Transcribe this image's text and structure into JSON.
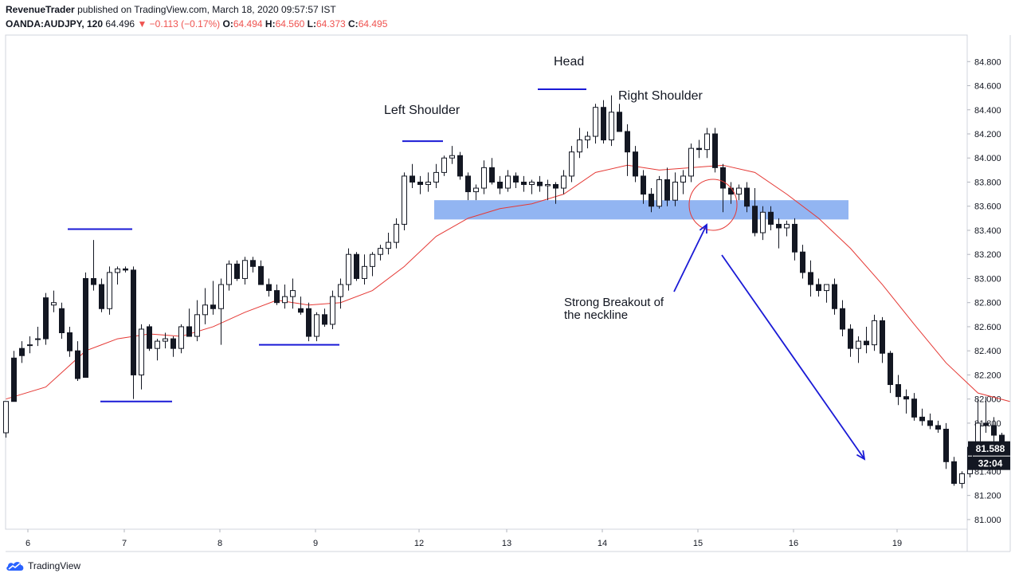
{
  "header": {
    "author": "RevenueTrader",
    "published_text": "published on TradingView.com, March 18, 2020 09:57:57 IST",
    "symbol": "OANDA:AUDJPY, 120",
    "last": "64.496",
    "change": "−0.113 (−0.17%)",
    "ohlc": [
      {
        "label": "O:",
        "value": "64.494"
      },
      {
        "label": "H:",
        "value": "64.560"
      },
      {
        "label": "L:",
        "value": "64.373"
      },
      {
        "label": "C:",
        "value": "64.495"
      }
    ]
  },
  "footer": {
    "brand": "TradingView"
  },
  "colors": {
    "ma": "#e53935",
    "zone": "#7fa8f0",
    "lines": "#1a1ad6",
    "circle": "#e53935"
  },
  "chart_data": {
    "type": "candlestick",
    "x_ticks": [
      "6",
      "7",
      "8",
      "9",
      "12",
      "13",
      "14",
      "15",
      "16",
      "19"
    ],
    "y_ticks": [
      "84.800",
      "84.600",
      "84.400",
      "84.200",
      "84.000",
      "83.800",
      "83.600",
      "83.400",
      "83.200",
      "83.000",
      "82.800",
      "82.600",
      "82.400",
      "82.200",
      "82.000",
      "81.800",
      "81.600",
      "81.400",
      "81.200",
      "81.000"
    ],
    "ylim": [
      80.92,
      85.02
    ],
    "last_price_label": "81.588",
    "countdown_label": "32:04",
    "candles": [
      [
        81.72,
        81.98,
        81.68,
        81.98
      ],
      [
        82.34,
        82.4,
        81.98,
        81.98
      ],
      [
        82.42,
        82.48,
        82.3,
        82.36
      ],
      [
        82.45,
        82.52,
        82.38,
        82.45
      ],
      [
        82.5,
        82.6,
        82.44,
        82.5
      ],
      [
        82.84,
        82.88,
        82.45,
        82.5
      ],
      [
        82.78,
        82.9,
        82.72,
        82.8
      ],
      [
        82.75,
        82.8,
        82.5,
        82.55
      ],
      [
        82.55,
        82.6,
        82.35,
        82.4
      ],
      [
        82.4,
        82.48,
        82.15,
        82.17
      ],
      [
        83.0,
        83.05,
        82.18,
        82.18
      ],
      [
        83.0,
        83.32,
        82.9,
        82.95
      ],
      [
        82.95,
        83.0,
        82.72,
        82.75
      ],
      [
        82.75,
        83.1,
        82.7,
        83.05
      ],
      [
        83.05,
        83.1,
        82.95,
        83.08
      ],
      [
        83.08,
        83.1,
        83.05,
        83.07
      ],
      [
        83.07,
        83.1,
        82.0,
        82.2
      ],
      [
        82.2,
        82.62,
        82.08,
        82.58
      ],
      [
        82.6,
        82.62,
        82.4,
        82.42
      ],
      [
        82.42,
        82.5,
        82.32,
        82.48
      ],
      [
        82.48,
        82.55,
        82.42,
        82.5
      ],
      [
        82.5,
        82.52,
        82.35,
        82.42
      ],
      [
        82.42,
        82.62,
        82.38,
        82.6
      ],
      [
        82.6,
        82.75,
        82.52,
        82.52
      ],
      [
        82.52,
        82.82,
        82.48,
        82.7
      ],
      [
        82.7,
        82.92,
        82.62,
        82.78
      ],
      [
        82.78,
        82.98,
        82.7,
        82.75
      ],
      [
        82.75,
        83.0,
        82.45,
        82.95
      ],
      [
        82.95,
        83.15,
        82.9,
        83.12
      ],
      [
        83.12,
        83.15,
        82.98,
        83.0
      ],
      [
        83.0,
        83.18,
        82.95,
        83.15
      ],
      [
        83.15,
        83.18,
        83.05,
        83.1
      ],
      [
        83.1,
        83.15,
        82.95,
        82.95
      ],
      [
        82.95,
        83.0,
        82.85,
        82.9
      ],
      [
        82.9,
        82.95,
        82.78,
        82.8
      ],
      [
        82.8,
        82.95,
        82.75,
        82.85
      ],
      [
        82.85,
        83.0,
        82.75,
        82.9
      ],
      [
        82.75,
        82.85,
        82.7,
        82.72
      ],
      [
        82.75,
        82.8,
        82.48,
        82.52
      ],
      [
        82.52,
        82.72,
        82.48,
        82.7
      ],
      [
        82.7,
        82.75,
        82.6,
        82.62
      ],
      [
        82.62,
        82.9,
        82.58,
        82.85
      ],
      [
        82.85,
        83.0,
        82.75,
        82.95
      ],
      [
        82.95,
        83.25,
        82.9,
        83.2
      ],
      [
        83.2,
        83.22,
        82.98,
        83.0
      ],
      [
        83.0,
        83.2,
        82.95,
        83.1
      ],
      [
        83.1,
        83.22,
        83.02,
        83.2
      ],
      [
        83.2,
        83.28,
        83.15,
        83.25
      ],
      [
        83.25,
        83.38,
        83.2,
        83.3
      ],
      [
        83.3,
        83.5,
        83.25,
        83.45
      ],
      [
        83.45,
        83.88,
        83.4,
        83.85
      ],
      [
        83.85,
        83.95,
        83.75,
        83.8
      ],
      [
        83.8,
        83.85,
        83.7,
        83.78
      ],
      [
        83.78,
        83.88,
        83.72,
        83.8
      ],
      [
        83.8,
        83.95,
        83.75,
        83.88
      ],
      [
        83.88,
        84.02,
        83.85,
        84.0
      ],
      [
        84.0,
        84.1,
        83.95,
        84.02
      ],
      [
        84.02,
        84.05,
        83.82,
        83.85
      ],
      [
        83.85,
        83.88,
        83.65,
        83.72
      ],
      [
        83.72,
        83.78,
        83.65,
        83.75
      ],
      [
        83.75,
        83.98,
        83.7,
        83.92
      ],
      [
        83.92,
        84.0,
        83.78,
        83.8
      ],
      [
        83.8,
        83.85,
        83.7,
        83.75
      ],
      [
        83.75,
        83.9,
        83.72,
        83.85
      ],
      [
        83.85,
        83.88,
        83.75,
        83.8
      ],
      [
        83.8,
        83.85,
        83.72,
        83.78
      ],
      [
        83.78,
        83.82,
        83.7,
        83.8
      ],
      [
        83.8,
        83.85,
        83.72,
        83.77
      ],
      [
        83.77,
        83.82,
        83.65,
        83.78
      ],
      [
        83.78,
        83.8,
        83.62,
        83.75
      ],
      [
        83.75,
        83.9,
        83.7,
        83.85
      ],
      [
        83.85,
        84.1,
        83.8,
        84.05
      ],
      [
        84.05,
        84.25,
        84.0,
        84.15
      ],
      [
        84.15,
        84.22,
        84.08,
        84.18
      ],
      [
        84.18,
        84.45,
        84.12,
        84.42
      ],
      [
        84.42,
        84.48,
        84.12,
        84.15
      ],
      [
        84.15,
        84.52,
        84.1,
        84.38
      ],
      [
        84.38,
        84.45,
        84.22,
        84.22
      ],
      [
        84.22,
        84.28,
        83.85,
        84.05
      ],
      [
        84.05,
        84.1,
        83.8,
        83.85
      ],
      [
        83.85,
        83.9,
        83.62,
        83.7
      ],
      [
        83.7,
        83.75,
        83.55,
        83.6
      ],
      [
        83.6,
        83.85,
        83.58,
        83.82
      ],
      [
        83.82,
        83.92,
        83.6,
        83.65
      ],
      [
        83.65,
        83.88,
        83.6,
        83.8
      ],
      [
        83.8,
        83.9,
        83.7,
        83.85
      ],
      [
        83.85,
        84.12,
        83.8,
        84.08
      ],
      [
        84.08,
        84.15,
        84.0,
        84.07
      ],
      [
        84.07,
        84.25,
        84.0,
        84.2
      ],
      [
        84.2,
        84.25,
        83.88,
        83.92
      ],
      [
        83.92,
        83.95,
        83.55,
        83.75
      ],
      [
        83.75,
        83.8,
        83.62,
        83.7
      ],
      [
        83.7,
        83.78,
        83.65,
        83.75
      ],
      [
        83.75,
        83.8,
        83.55,
        83.6
      ],
      [
        83.6,
        83.75,
        83.35,
        83.38
      ],
      [
        83.38,
        83.6,
        83.32,
        83.55
      ],
      [
        83.55,
        83.6,
        83.4,
        83.45
      ],
      [
        83.45,
        83.5,
        83.25,
        83.42
      ],
      [
        83.42,
        83.48,
        83.35,
        83.45
      ],
      [
        83.45,
        83.5,
        83.15,
        83.22
      ],
      [
        83.22,
        83.28,
        83.0,
        83.05
      ],
      [
        83.05,
        83.15,
        82.85,
        82.95
      ],
      [
        82.95,
        83.0,
        82.85,
        82.9
      ],
      [
        82.9,
        82.95,
        82.8,
        82.95
      ],
      [
        82.95,
        83.0,
        82.7,
        82.75
      ],
      [
        82.75,
        82.82,
        82.52,
        82.58
      ],
      [
        82.58,
        82.62,
        82.35,
        82.42
      ],
      [
        82.42,
        82.52,
        82.3,
        82.48
      ],
      [
        82.48,
        82.6,
        82.38,
        82.45
      ],
      [
        82.45,
        82.7,
        82.4,
        82.65
      ],
      [
        82.65,
        82.68,
        82.3,
        82.38
      ],
      [
        82.38,
        82.4,
        82.05,
        82.12
      ],
      [
        82.12,
        82.2,
        81.95,
        82.02
      ],
      [
        82.02,
        82.08,
        81.88,
        82.0
      ],
      [
        82.0,
        82.05,
        81.82,
        81.85
      ],
      [
        81.85,
        81.92,
        81.78,
        81.82
      ],
      [
        81.82,
        81.88,
        81.75,
        81.78
      ],
      [
        81.78,
        81.82,
        81.72,
        81.75
      ],
      [
        81.75,
        81.8,
        81.42,
        81.48
      ],
      [
        81.48,
        81.52,
        81.28,
        81.3
      ],
      [
        81.3,
        81.4,
        81.26,
        81.38
      ],
      [
        81.38,
        81.62,
        81.35,
        81.6
      ],
      [
        81.6,
        82.0,
        81.55,
        81.8
      ],
      [
        81.8,
        82.02,
        81.72,
        81.78
      ],
      [
        81.78,
        81.85,
        81.62,
        81.7
      ],
      [
        81.7,
        81.72,
        81.58,
        81.59
      ]
    ],
    "ma": [
      [
        0,
        82.0
      ],
      [
        5,
        82.1
      ],
      [
        10,
        82.4
      ],
      [
        14,
        82.5
      ],
      [
        18,
        82.54
      ],
      [
        22,
        82.52
      ],
      [
        26,
        82.6
      ],
      [
        30,
        82.72
      ],
      [
        34,
        82.82
      ],
      [
        38,
        82.78
      ],
      [
        42,
        82.8
      ],
      [
        46,
        82.9
      ],
      [
        50,
        83.1
      ],
      [
        54,
        83.35
      ],
      [
        58,
        83.5
      ],
      [
        62,
        83.58
      ],
      [
        66,
        83.62
      ],
      [
        70,
        83.7
      ],
      [
        74,
        83.88
      ],
      [
        78,
        83.94
      ],
      [
        82,
        83.9
      ],
      [
        86,
        83.92
      ],
      [
        90,
        83.94
      ],
      [
        94,
        83.88
      ],
      [
        98,
        83.7
      ],
      [
        102,
        83.5
      ],
      [
        106,
        83.25
      ],
      [
        110,
        82.95
      ],
      [
        114,
        82.62
      ],
      [
        118,
        82.3
      ],
      [
        122,
        82.05
      ],
      [
        126,
        81.98
      ]
    ],
    "annotations": [
      {
        "text": "Left Shoulder"
      },
      {
        "text": "Head"
      },
      {
        "text": "Right Shoulder"
      },
      {
        "text": "Strong Breakout of",
        "text2": "the neckline"
      }
    ]
  }
}
